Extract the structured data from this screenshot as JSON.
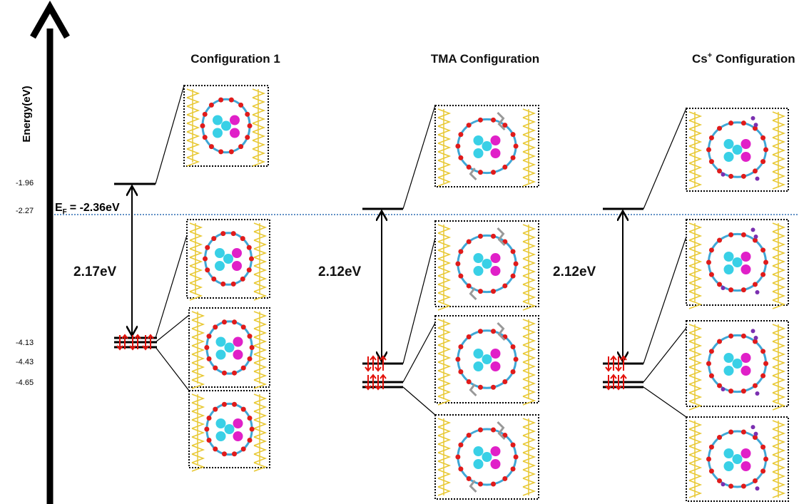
{
  "axis": {
    "label": "Energy(eV)",
    "ticks": [
      "-1.96",
      "-2.27",
      "-4.13",
      "-4.43",
      "-4.65"
    ]
  },
  "fermi_level": {
    "symbol": "E",
    "subscript": "F",
    "value": "= -2.36eV"
  },
  "configurations": [
    {
      "title": "Configuration 1",
      "gap": "2.17eV"
    },
    {
      "title": "TMA Configuration",
      "gap": "2.12eV"
    },
    {
      "title_base": "Cs",
      "title_superscript": "+",
      "title_rest": "Configuration",
      "gap": "2.12eV"
    }
  ]
}
